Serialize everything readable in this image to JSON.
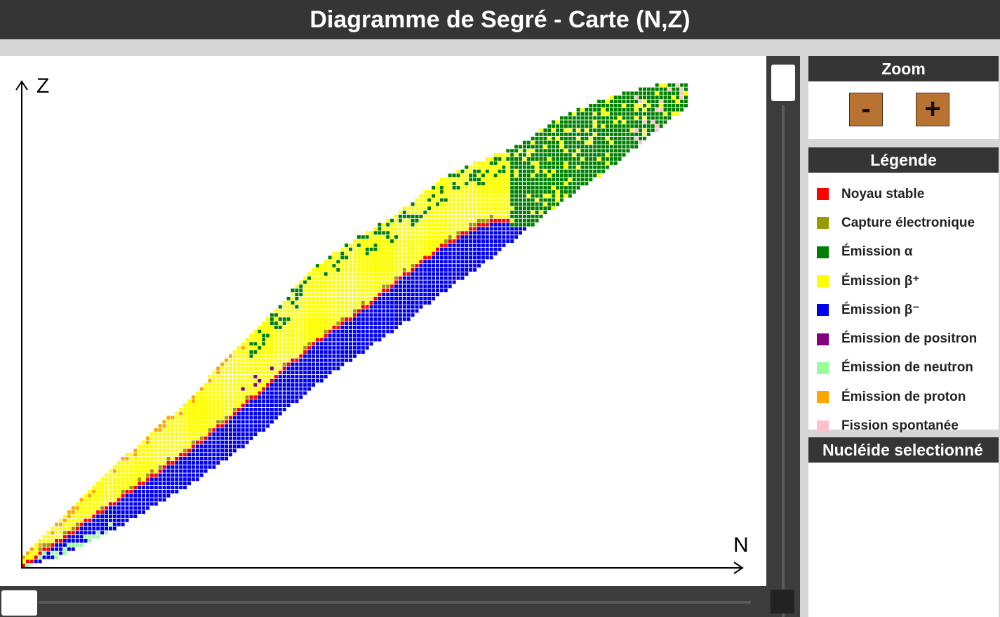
{
  "window": {
    "title": "Diagramme de Segré - Carte (N,Z)"
  },
  "chart_data": {
    "type": "heatmap",
    "title": "",
    "xlabel": "N",
    "ylabel": "Z",
    "xlim": [
      0,
      180
    ],
    "ylim": [
      0,
      120
    ],
    "grid": false,
    "legend_position": "right",
    "band_profile": {
      "x_N": [
        0,
        10,
        20,
        30,
        40,
        50,
        60,
        70,
        80,
        90,
        100,
        110,
        120,
        130,
        140,
        150,
        155,
        160
      ],
      "z_lower": [
        0,
        3,
        8,
        14,
        20,
        27,
        35,
        44,
        51,
        58,
        66,
        73,
        81,
        89,
        96,
        104,
        108,
        112
      ],
      "z_upper": [
        2,
        12,
        22,
        31,
        40,
        51,
        61,
        72,
        79,
        85,
        93,
        98,
        102,
        109,
        113,
        116,
        117,
        117
      ],
      "z_stable": [
        0,
        7,
        14,
        21,
        28,
        36,
        45,
        54,
        61,
        69,
        77,
        83,
        85,
        85,
        85,
        85,
        85,
        85
      ]
    },
    "colors": {
      "stable": "#ff0000",
      "electron_capture": "#999900",
      "alpha": "#008000",
      "beta_plus": "#ffff00",
      "beta_minus": "#0000ee",
      "positron": "#800080",
      "neutron": "#99ff99",
      "proton": "#ffa500",
      "fission": "#ffc0cb"
    }
  },
  "zoom": {
    "title": "Zoom",
    "minus_label": "-",
    "plus_label": "+"
  },
  "legend": {
    "title": "Légende",
    "items": [
      {
        "label": "Noyau stable",
        "color": "#ff0000"
      },
      {
        "label": "Capture électronique",
        "color": "#999900"
      },
      {
        "label": "Émission α",
        "color": "#008000"
      },
      {
        "label": "Émission β⁺",
        "color": "#ffff00"
      },
      {
        "label": "Émission β⁻",
        "color": "#0000ee"
      },
      {
        "label": "Émission de positron",
        "color": "#800080"
      },
      {
        "label": "Émission de neutron",
        "color": "#99ff99"
      },
      {
        "label": "Émission de proton",
        "color": "#ffa500"
      },
      {
        "label": "Fission spontanée",
        "color": "#ffc0cb"
      }
    ]
  },
  "nuclide": {
    "title": "Nucléide selectionné"
  },
  "scrollbars": {
    "vertical_position": 0,
    "horizontal_position": 0
  }
}
